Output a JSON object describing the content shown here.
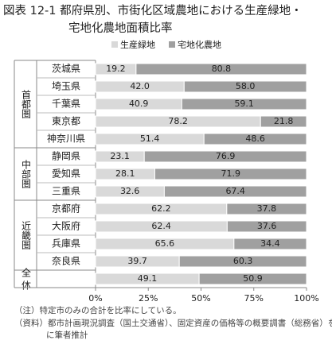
{
  "chart_data": {
    "type": "stacked-bar-horizontal",
    "title": [
      "図表 12-1 都府県別、市街化区域農地における生産緑地・",
      "宅地化農地面積比率"
    ],
    "groups": [
      {
        "name": "首都圏",
        "categories": [
          "茨城県",
          "埼玉県",
          "千葉県",
          "東京都",
          "神奈川県"
        ]
      },
      {
        "name": "中部圏",
        "categories": [
          "静岡県",
          "愛知県",
          "三重県"
        ]
      },
      {
        "name": "近畿圏",
        "categories": [
          "京都府",
          "大阪府",
          "兵庫県",
          "奈良県"
        ]
      },
      {
        "name": "全 体",
        "categories": [
          null
        ]
      }
    ],
    "series": [
      {
        "name": "生産緑地",
        "color": "#d9d9d9",
        "values": [
          19.2,
          42.0,
          40.9,
          78.2,
          51.4,
          23.1,
          28.1,
          32.6,
          62.2,
          62.4,
          65.6,
          39.7,
          49.1
        ],
        "value_labels": [
          "19.2",
          "42.0",
          "40.9",
          "78.2",
          "51.4",
          "23.1",
          "28.1",
          "32.6",
          "62.2",
          "62.4",
          "65.6",
          "39.7",
          "49.1"
        ]
      },
      {
        "name": "宅地化農地",
        "color": "#a0a0a0",
        "values": [
          80.8,
          58.0,
          59.1,
          21.8,
          48.6,
          76.9,
          71.9,
          67.4,
          37.8,
          37.6,
          34.4,
          60.3,
          50.9
        ],
        "value_labels": [
          "80.8",
          "58.0",
          "59.1",
          "21.8",
          "48.6",
          "76.9",
          "71.9",
          "67.4",
          "37.8",
          "37.6",
          "34.4",
          "60.3",
          "50.9"
        ]
      }
    ],
    "xlim": [
      0,
      100
    ],
    "xticks": [
      {
        "value": 0,
        "label": "0%"
      },
      {
        "value": 25,
        "label": "25%"
      },
      {
        "value": 50,
        "label": "50%"
      },
      {
        "value": 75,
        "label": "75%"
      },
      {
        "value": 100,
        "label": "100%"
      }
    ],
    "notes": [
      "（注）特定市のみの合計を比率にしている。",
      "（資料）都市計画現況調査（国土交通省）、固定資産の価格等の概要調書（総務省）を基に筆者推計"
    ]
  }
}
